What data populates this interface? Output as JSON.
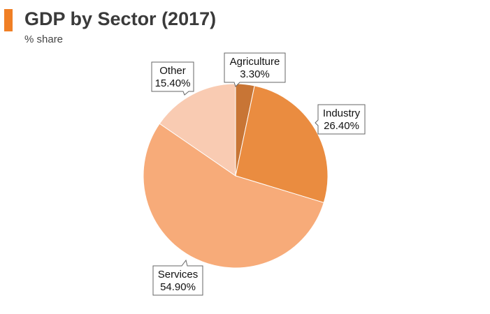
{
  "header": {
    "title": "GDP by Sector (2017)",
    "subtitle": "% share"
  },
  "chart_data": {
    "type": "pie",
    "title": "GDP by Sector (2017)",
    "subtitle": "% share",
    "slices": [
      {
        "name": "Agriculture",
        "value": 3.3,
        "display": "3.30%",
        "color": "#c87535"
      },
      {
        "name": "Industry",
        "value": 26.4,
        "display": "26.40%",
        "color": "#ea8c40"
      },
      {
        "name": "Services",
        "value": 54.9,
        "display": "54.90%",
        "color": "#f7ab79"
      },
      {
        "name": "Other",
        "value": 15.4,
        "display": "15.40%",
        "color": "#f9cbb2"
      }
    ]
  }
}
